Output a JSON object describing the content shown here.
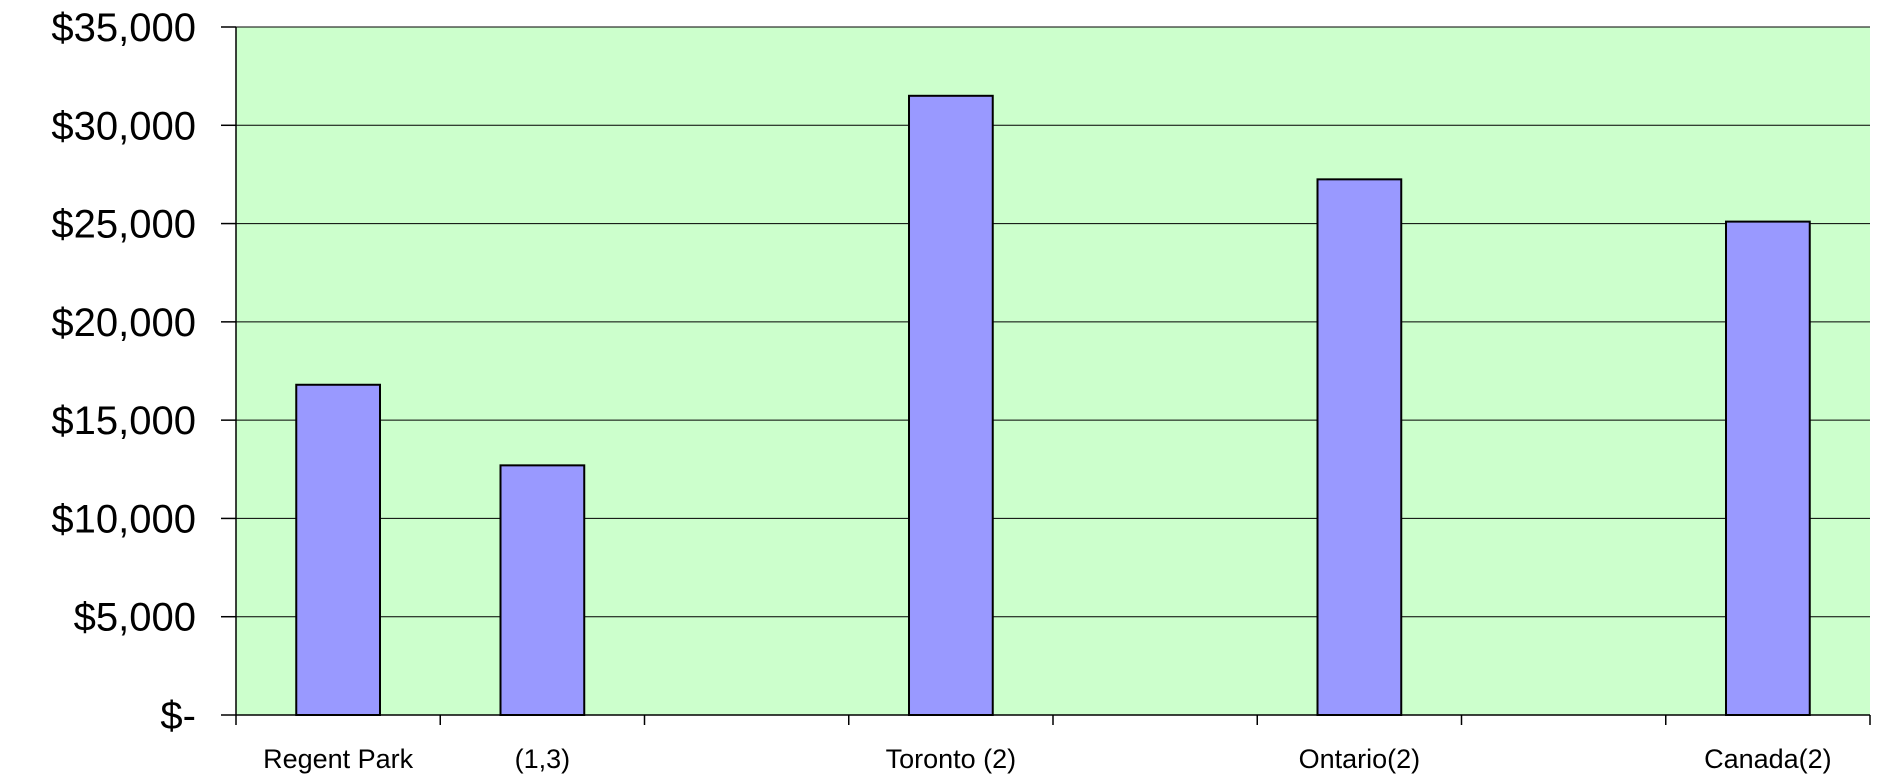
{
  "chart_data": {
    "type": "bar",
    "categories": [
      "Regent Park",
      "(1,3)",
      "Toronto (2)",
      "Ontario(2)",
      "Canada(2)"
    ],
    "x_slots": [
      0,
      1,
      3,
      5,
      7
    ],
    "slot_count": 8,
    "values": [
      16800,
      12700,
      31500,
      27250,
      25100
    ],
    "ylim": [
      0,
      35000
    ],
    "yticks": [
      0,
      5000,
      10000,
      15000,
      20000,
      25000,
      30000,
      35000
    ],
    "ytick_labels": [
      "$-",
      "$5,000",
      "$10,000",
      "$15,000",
      "$20,000",
      "$25,000",
      "$30,000",
      "$35,000"
    ],
    "title": "",
    "xlabel": "",
    "ylabel": "",
    "grid": true,
    "legend": "none",
    "colors": {
      "plot_background": "#ccffcc",
      "bar_fill": "#9999ff",
      "bar_stroke": "#000000",
      "grid": "#000000"
    }
  }
}
